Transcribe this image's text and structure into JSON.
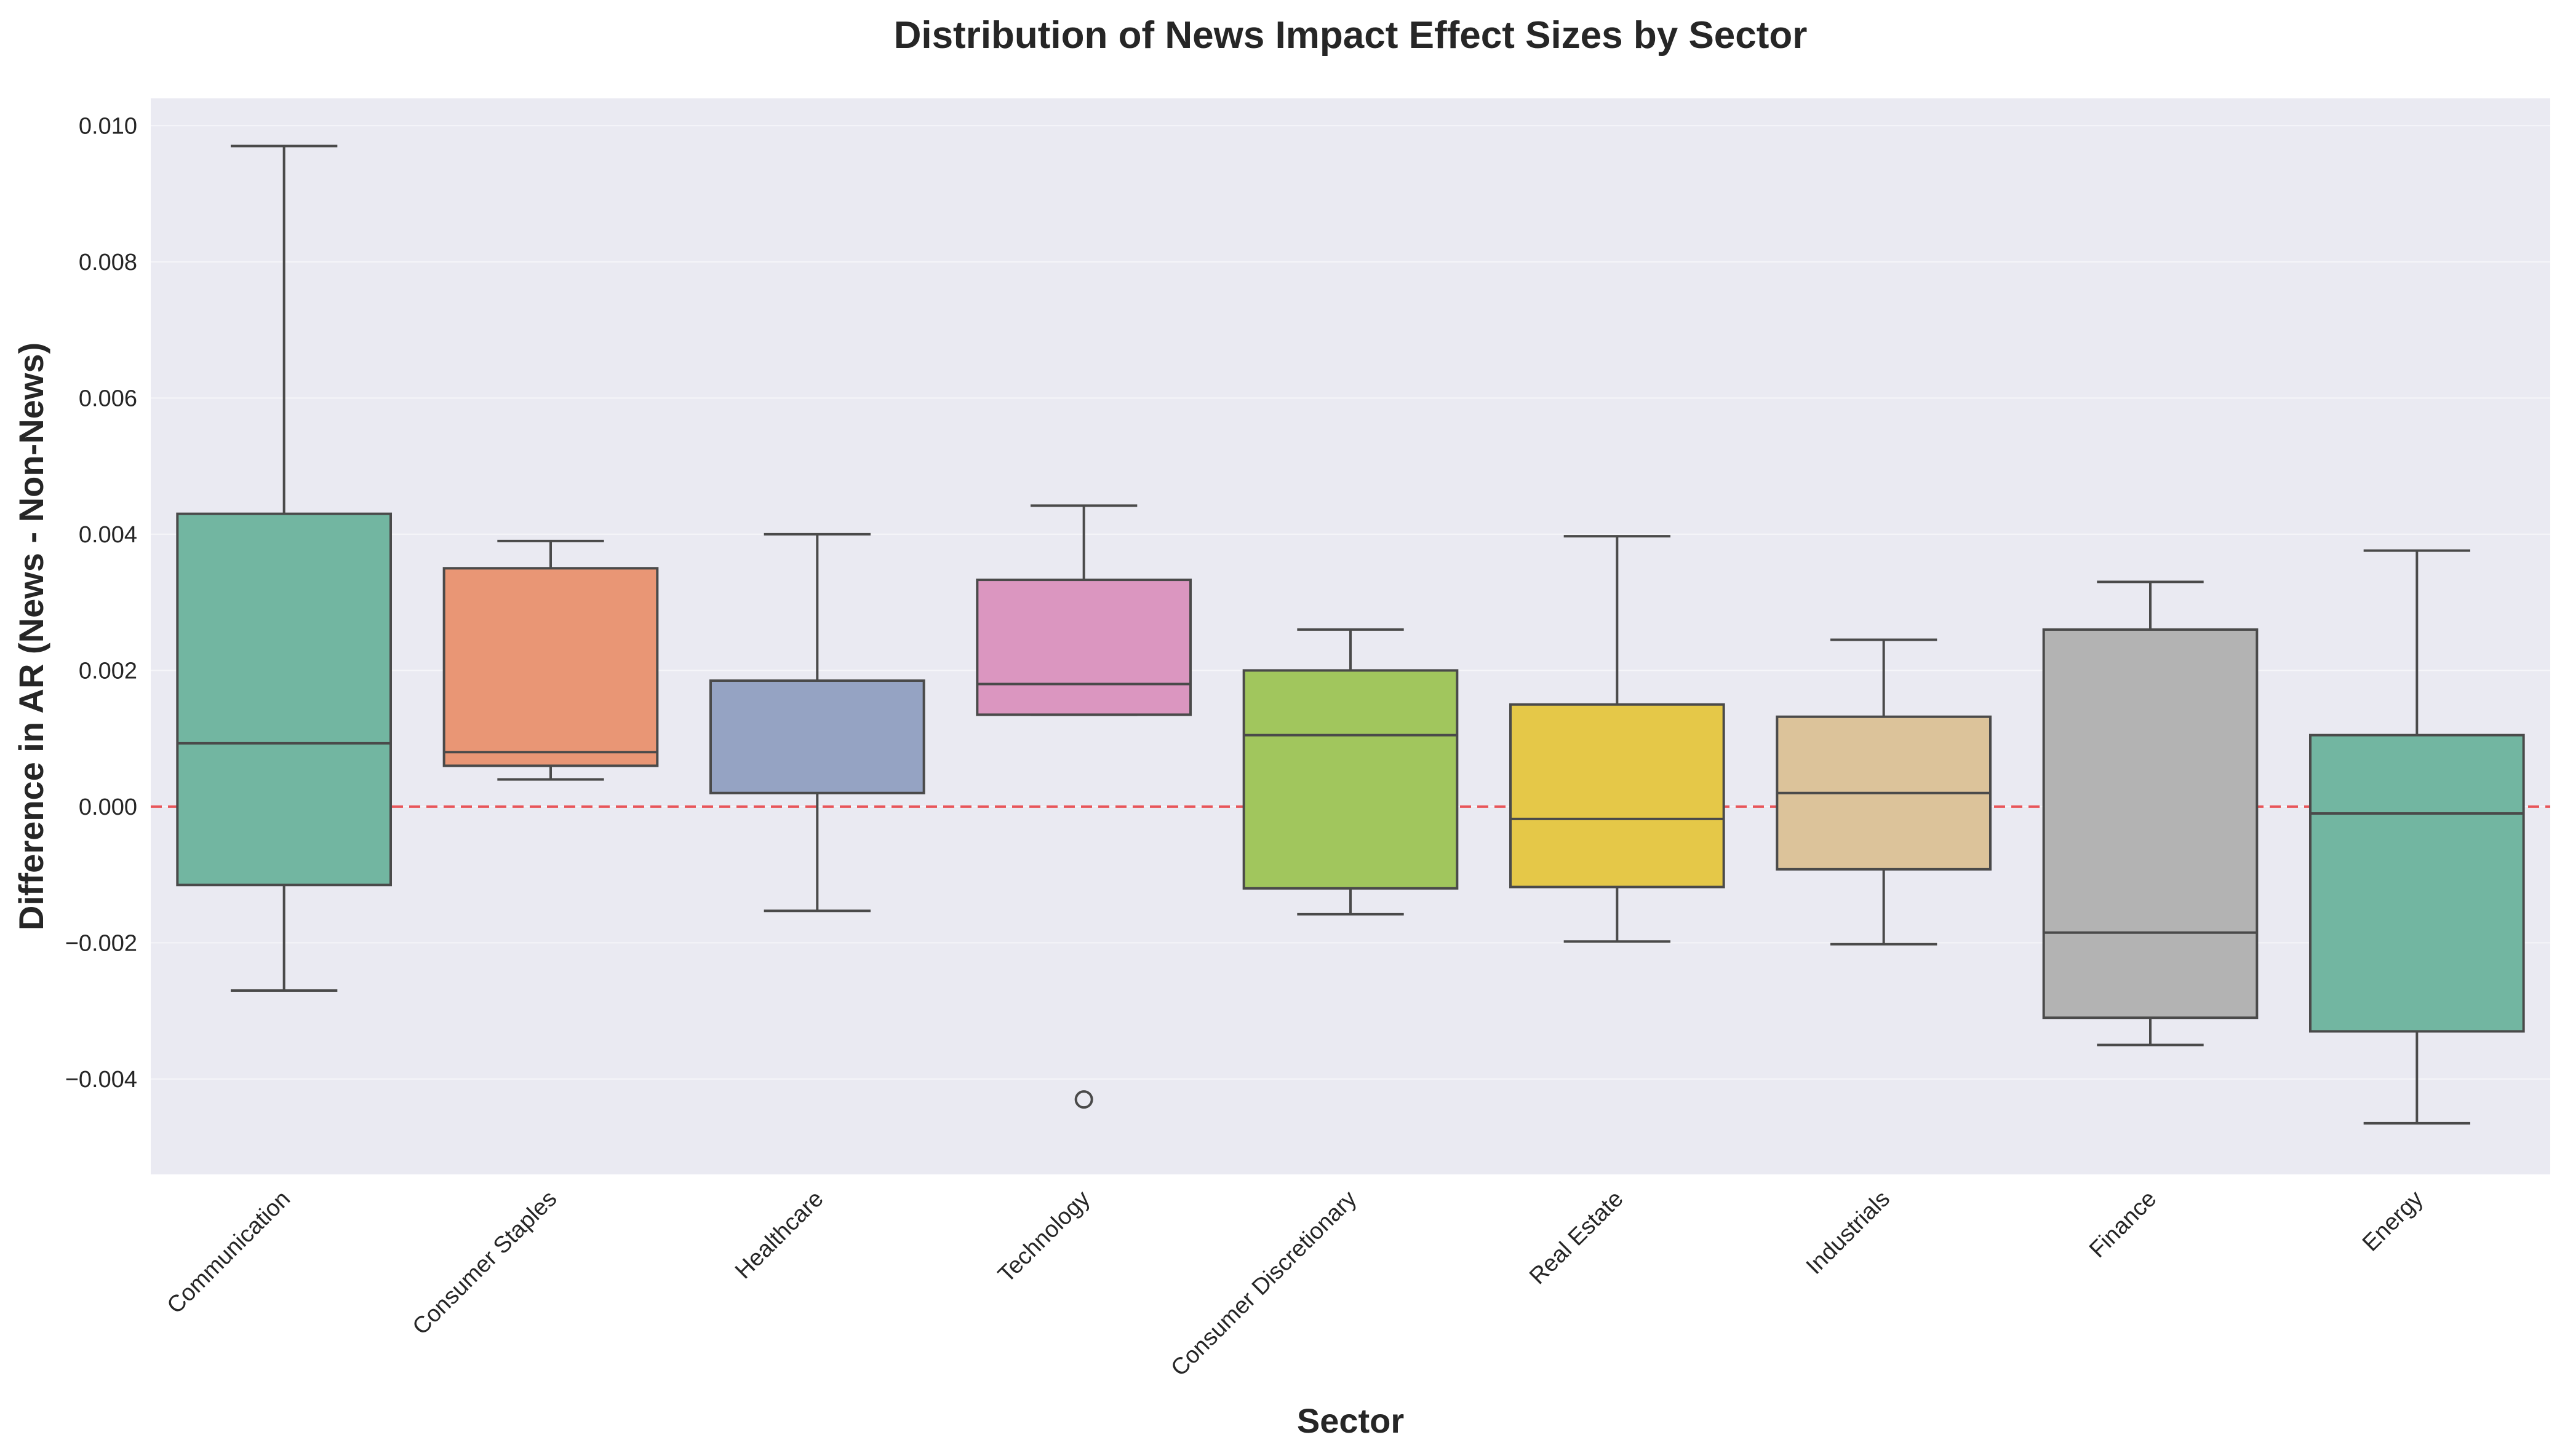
{
  "chart_data": {
    "type": "box",
    "title": "Distribution of News Impact Effect Sizes by Sector",
    "xlabel": "Sector",
    "ylabel": "Difference in AR (News - Non-News)",
    "ylim": [
      -0.0054,
      0.0104
    ],
    "yticks": [
      -0.004,
      -0.002,
      0.0,
      0.002,
      0.004,
      0.006,
      0.008,
      0.01
    ],
    "ytick_labels": [
      "−0.004",
      "−0.002",
      "0.000",
      "0.002",
      "0.004",
      "0.006",
      "0.008",
      "0.010"
    ],
    "reference_line": {
      "y": 0.0,
      "color": "#e8555a",
      "style": "dashed"
    },
    "grid": true,
    "categories": [
      "Communication",
      "Consumer Staples",
      "Healthcare",
      "Technology",
      "Consumer Discretionary",
      "Real Estate",
      "Industrials",
      "Finance",
      "Energy"
    ],
    "boxes": [
      {
        "category": "Communication",
        "whisker_low": -0.0027,
        "q1": -0.00115,
        "median": 0.00093,
        "q3": 0.0043,
        "whisker_high": 0.0097,
        "outliers": [],
        "color": "#72b6a1"
      },
      {
        "category": "Consumer Staples",
        "whisker_low": 0.0004,
        "q1": 0.0006,
        "median": 0.0008,
        "q3": 0.0035,
        "whisker_high": 0.0039,
        "outliers": [],
        "color": "#e99675"
      },
      {
        "category": "Healthcare",
        "whisker_low": -0.00153,
        "q1": 0.0002,
        "median": 0.00185,
        "q3": 0.00185,
        "whisker_high": 0.004,
        "outliers": [],
        "color": "#95a3c3"
      },
      {
        "category": "Technology",
        "whisker_low": 0.00135,
        "q1": 0.00135,
        "median": 0.0018,
        "q3": 0.00333,
        "whisker_high": 0.00442,
        "outliers": [
          -0.0043
        ],
        "color": "#db96c0"
      },
      {
        "category": "Consumer Discretionary",
        "whisker_low": -0.00158,
        "q1": -0.0012,
        "median": 0.00105,
        "q3": 0.002,
        "whisker_high": 0.0026,
        "outliers": [],
        "color": "#a1c65d"
      },
      {
        "category": "Real Estate",
        "whisker_low": -0.00198,
        "q1": -0.00118,
        "median": -0.00018,
        "q3": 0.0015,
        "whisker_high": 0.00397,
        "outliers": [],
        "color": "#e5c848"
      },
      {
        "category": "Industrials",
        "whisker_low": -0.00202,
        "q1": -0.00092,
        "median": 0.0002,
        "q3": 0.00132,
        "whisker_high": 0.00245,
        "outliers": [],
        "color": "#dcc39a"
      },
      {
        "category": "Finance",
        "whisker_low": -0.0035,
        "q1": -0.0031,
        "median": -0.00185,
        "q3": 0.0026,
        "whisker_high": 0.0033,
        "outliers": [],
        "color": "#b3b3b3"
      },
      {
        "category": "Energy",
        "whisker_low": -0.00465,
        "q1": -0.0033,
        "median": -0.0001,
        "q3": 0.00105,
        "whisker_high": 0.00376,
        "outliers": [],
        "color": "#72b6a1"
      }
    ]
  }
}
